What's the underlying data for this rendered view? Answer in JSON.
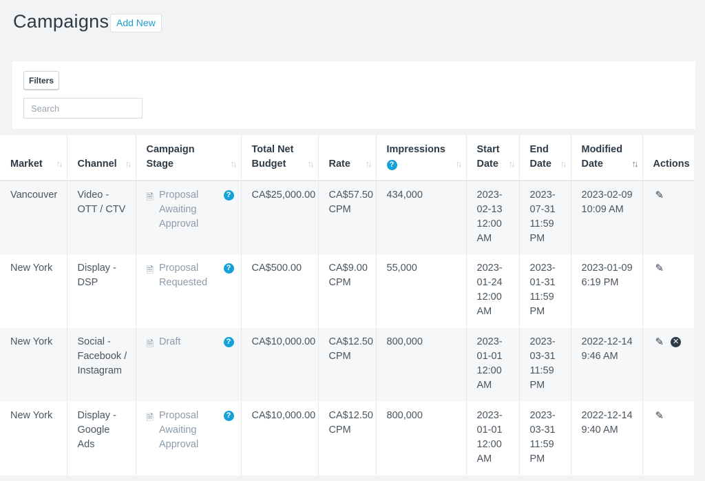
{
  "page": {
    "title": "Campaigns",
    "add_new": "Add New"
  },
  "filters": {
    "button": "Filters",
    "search_placeholder": "Search",
    "search_value": ""
  },
  "table": {
    "headers": [
      {
        "label": "Market",
        "sortable": true
      },
      {
        "label": "Channel",
        "sortable": true
      },
      {
        "label": "Campaign Stage",
        "sortable": true
      },
      {
        "label": "Total Net Budget",
        "sortable": true
      },
      {
        "label": "Rate",
        "sortable": true
      },
      {
        "label": "Impressions",
        "sortable": true,
        "help": true
      },
      {
        "label": "Start Date",
        "sortable": true
      },
      {
        "label": "End Date",
        "sortable": true
      },
      {
        "label": "Modified Date",
        "sortable": true,
        "active": true
      },
      {
        "label": "Actions",
        "sortable": false
      }
    ],
    "rows": [
      {
        "market": "Vancouver",
        "channel": "Video - OTT / CTV",
        "stage": "Proposal Awaiting Approval",
        "budget": "CA$25,000.00",
        "rate": "CA$57.50 CPM",
        "impressions": "434,000",
        "start": "2023-02-13 12:00 AM",
        "end": "2023-07-31 11:59 PM",
        "modified": "2023-02-09 10:09 AM",
        "delete": false
      },
      {
        "market": "New York",
        "channel": "Display - DSP",
        "stage": "Proposal Requested",
        "budget": "CA$500.00",
        "rate": "CA$9.00 CPM",
        "impressions": "55,000",
        "start": "2023-01-24 12:00 AM",
        "end": "2023-01-31 11:59 PM",
        "modified": "2023-01-09 6:19 PM",
        "delete": false
      },
      {
        "market": "New York",
        "channel": "Social - Facebook / Instagram",
        "stage": "Draft",
        "budget": "CA$10,000.00",
        "rate": "CA$12.50 CPM",
        "impressions": "800,000",
        "start": "2023-01-01 12:00 AM",
        "end": "2023-03-31 11:59 PM",
        "modified": "2022-12-14 9:46 AM",
        "delete": true
      },
      {
        "market": "New York",
        "channel": "Display - Google Ads",
        "stage": "Proposal Awaiting Approval",
        "budget": "CA$10,000.00",
        "rate": "CA$12.50 CPM",
        "impressions": "800,000",
        "start": "2023-01-01 12:00 AM",
        "end": "2023-03-31 11:59 PM",
        "modified": "2022-12-14 9:40 AM",
        "delete": false
      }
    ]
  }
}
